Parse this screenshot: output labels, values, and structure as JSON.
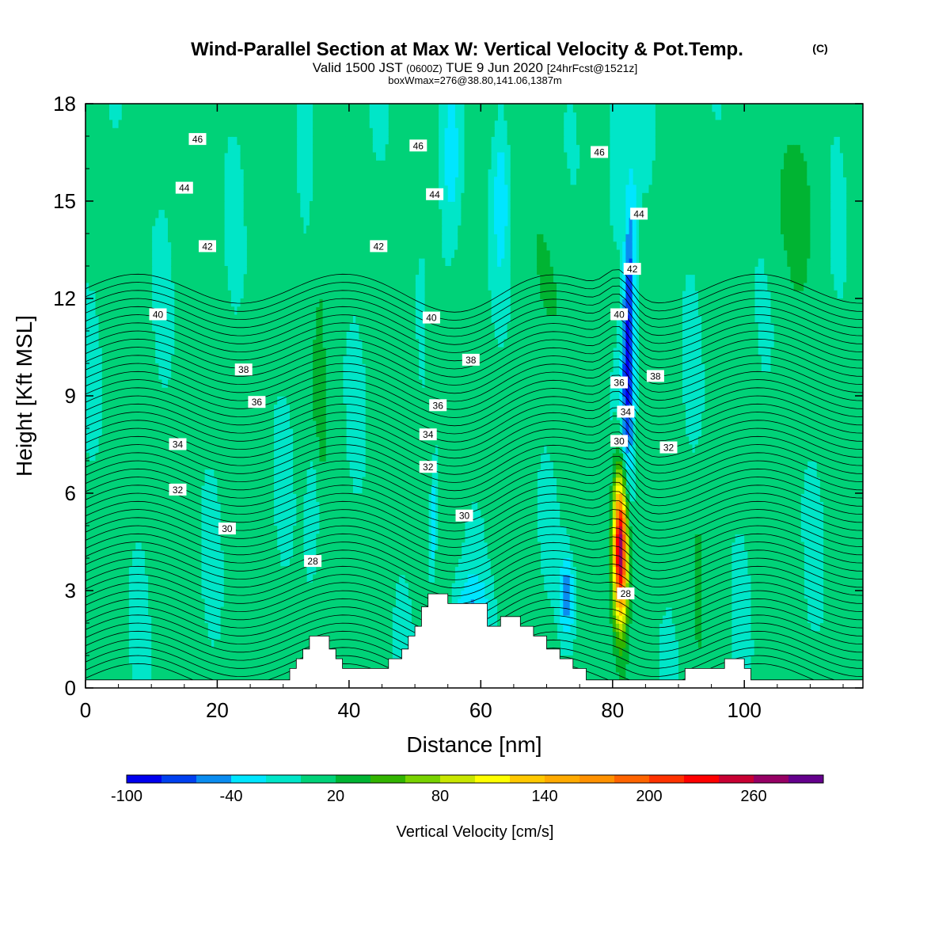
{
  "title": {
    "main": "Wind-Parallel Section at Max W: Vertical Velocity & Pot.Temp.",
    "copyright": "(C)",
    "valid_prefix": "Valid 1500 JST",
    "valid_zulu": "(0600Z)",
    "valid_date": "TUE 9 Jun 2020",
    "forecast": "[24hrFcst@1521z]",
    "boxwmax": "boxWmax=276@38.80,141.06,1387m"
  },
  "chart_data": {
    "type": "heatmap",
    "title": "Wind-Parallel Section at Max W: Vertical Velocity & Pot.Temp.",
    "xlabel": "Distance [nm]",
    "ylabel": "Height [Kft MSL]",
    "xlim": [
      0,
      118
    ],
    "ylim": [
      0,
      18
    ],
    "x_ticks": [
      0,
      20,
      40,
      60,
      80,
      100
    ],
    "y_ticks": [
      0,
      3,
      6,
      9,
      12,
      15,
      18
    ],
    "colorbar": {
      "title": "Vertical Velocity [cm/s]",
      "labels": [
        "-100",
        "-40",
        "20",
        "80",
        "140",
        "200",
        "260"
      ],
      "label_values": [
        -100,
        -40,
        20,
        80,
        140,
        200,
        260
      ],
      "bin_edges": [
        -100,
        -80,
        -60,
        -40,
        -20,
        0,
        20,
        40,
        60,
        80,
        100,
        120,
        140,
        160,
        180,
        200,
        220,
        240,
        260,
        280,
        300
      ],
      "colors": [
        "#0000ee",
        "#0040f0",
        "#0a8cf0",
        "#00e6ff",
        "#00e6c8",
        "#00d278",
        "#00b432",
        "#32b400",
        "#78d200",
        "#c8e600",
        "#ffff00",
        "#ffc800",
        "#ffaa00",
        "#ff9100",
        "#ff6400",
        "#ff3200",
        "#ff0000",
        "#c80032",
        "#960064",
        "#64008c"
      ]
    },
    "theta_contour_labels": [
      {
        "value": "46",
        "x": 17.0,
        "y": 16.9
      },
      {
        "value": "46",
        "x": 50.5,
        "y": 16.7
      },
      {
        "value": "46",
        "x": 78.0,
        "y": 16.5
      },
      {
        "value": "44",
        "x": 15.0,
        "y": 15.4
      },
      {
        "value": "44",
        "x": 53.0,
        "y": 15.2
      },
      {
        "value": "44",
        "x": 84.0,
        "y": 14.6
      },
      {
        "value": "42",
        "x": 18.5,
        "y": 13.6
      },
      {
        "value": "42",
        "x": 44.5,
        "y": 13.6
      },
      {
        "value": "42",
        "x": 83.0,
        "y": 12.9
      },
      {
        "value": "40",
        "x": 11.0,
        "y": 11.5
      },
      {
        "value": "40",
        "x": 52.5,
        "y": 11.4
      },
      {
        "value": "40",
        "x": 81.0,
        "y": 11.5
      },
      {
        "value": "38",
        "x": 24.0,
        "y": 9.8
      },
      {
        "value": "38",
        "x": 58.5,
        "y": 10.1
      },
      {
        "value": "38",
        "x": 86.5,
        "y": 9.6
      },
      {
        "value": "36",
        "x": 26.0,
        "y": 8.8
      },
      {
        "value": "36",
        "x": 53.5,
        "y": 8.7
      },
      {
        "value": "36",
        "x": 81.0,
        "y": 9.4
      },
      {
        "value": "34",
        "x": 14.0,
        "y": 7.5
      },
      {
        "value": "34",
        "x": 52.0,
        "y": 7.8
      },
      {
        "value": "34",
        "x": 82.0,
        "y": 8.5
      },
      {
        "value": "32",
        "x": 14.0,
        "y": 6.1
      },
      {
        "value": "32",
        "x": 52.0,
        "y": 6.8
      },
      {
        "value": "32",
        "x": 88.5,
        "y": 7.4
      },
      {
        "value": "30",
        "x": 21.5,
        "y": 4.9
      },
      {
        "value": "30",
        "x": 57.5,
        "y": 5.3
      },
      {
        "value": "30",
        "x": 81.0,
        "y": 7.6
      },
      {
        "value": "28",
        "x": 34.5,
        "y": 3.9
      },
      {
        "value": "28",
        "x": 82.0,
        "y": 2.9
      }
    ],
    "terrain_profile": [
      [
        0,
        0.25
      ],
      [
        30,
        0.25
      ],
      [
        31,
        0.25
      ],
      [
        31,
        0.6
      ],
      [
        32,
        0.6
      ],
      [
        32,
        0.9
      ],
      [
        33,
        0.9
      ],
      [
        33,
        1.2
      ],
      [
        34,
        1.2
      ],
      [
        34,
        1.6
      ],
      [
        37,
        1.6
      ],
      [
        37,
        1.2
      ],
      [
        38,
        1.2
      ],
      [
        38,
        0.9
      ],
      [
        39,
        0.9
      ],
      [
        39,
        0.6
      ],
      [
        46,
        0.6
      ],
      [
        46,
        0.9
      ],
      [
        48,
        0.9
      ],
      [
        48,
        1.2
      ],
      [
        49,
        1.2
      ],
      [
        49,
        1.6
      ],
      [
        50,
        1.6
      ],
      [
        50,
        1.9
      ],
      [
        51,
        1.9
      ],
      [
        51,
        2.5
      ],
      [
        52,
        2.5
      ],
      [
        52,
        2.9
      ],
      [
        55,
        2.9
      ],
      [
        55,
        2.6
      ],
      [
        61,
        2.6
      ],
      [
        61,
        1.9
      ],
      [
        63,
        1.9
      ],
      [
        63,
        2.2
      ],
      [
        66,
        2.2
      ],
      [
        66,
        1.9
      ],
      [
        68,
        1.9
      ],
      [
        68,
        1.6
      ],
      [
        70,
        1.6
      ],
      [
        70,
        1.2
      ],
      [
        72,
        1.2
      ],
      [
        72,
        0.9
      ],
      [
        74,
        0.9
      ],
      [
        74,
        0.6
      ],
      [
        76,
        0.6
      ],
      [
        76,
        0.25
      ],
      [
        91,
        0.25
      ],
      [
        91,
        0.6
      ],
      [
        97,
        0.6
      ],
      [
        97,
        0.9
      ],
      [
        100,
        0.9
      ],
      [
        100,
        0.6
      ],
      [
        101,
        0.6
      ],
      [
        101,
        0.25
      ],
      [
        118,
        0.25
      ]
    ],
    "w_features": [
      {
        "x": 81.2,
        "y": 4.3,
        "peak_w": 276
      },
      {
        "x": 82.5,
        "y": 10.5,
        "peak_w": -80
      },
      {
        "x": 73.0,
        "y": 2.8,
        "peak_w": -60
      },
      {
        "x": 53.0,
        "y": 5.0,
        "peak_w": -60
      },
      {
        "x": 34.5,
        "y": 5.5,
        "peak_w": -30
      }
    ],
    "grid": false
  }
}
